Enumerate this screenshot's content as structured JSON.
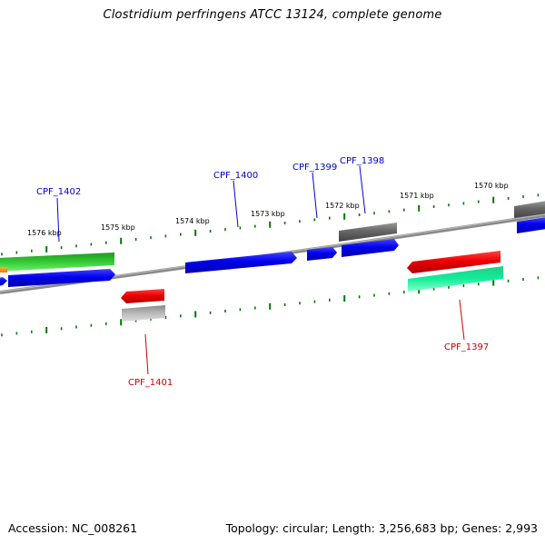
{
  "title": "Clostridium perfringens ATCC 13124, complete genome",
  "footer": {
    "accession": "Accession: NC_008261",
    "summary": "Topology: circular; Length: 3,256,683 bp; Genes: 2,993"
  },
  "ruler_ticks": [
    "1576 kbp",
    "1575 kbp",
    "1574 kbp",
    "1573 kbp",
    "1572 kbp",
    "1571 kbp",
    "1570 kbp"
  ],
  "genes": {
    "CPF_1402": "CPF_1402",
    "CPF_1400": "CPF_1400",
    "CPF_1399": "CPF_1399",
    "CPF_1398": "CPF_1398",
    "CPF_1401": "CPF_1401",
    "CPF_1397": "CPF_1397"
  },
  "colors": {
    "label_forward": "#0000cc",
    "label_reverse": "#cc0000",
    "tick": "#007700",
    "backbone": "#777777",
    "blue": "#0000ee",
    "red": "#ee0000",
    "green": "#22bb22",
    "gray": "#666666",
    "light_gray": "#aaaaaa",
    "aqua": "#11ee99",
    "orange": "#ff8800"
  }
}
